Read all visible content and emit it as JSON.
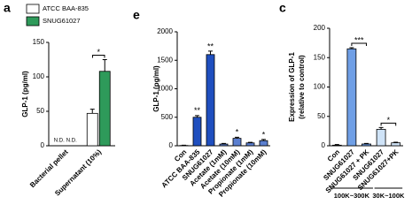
{
  "chart_data": [
    {
      "type": "bar",
      "panel": "a",
      "ylabel": "GLP-1 (pg/ml)",
      "categories": [
        "Bacterial pellet",
        "Supernatant (10%)"
      ],
      "series": [
        {
          "name": "ATCC BAA-835",
          "color": "#ffffff",
          "values": [
            null,
            47
          ],
          "errors": [
            null,
            6
          ],
          "value_labels": [
            "N.D.",
            null
          ]
        },
        {
          "name": "SNUG61027",
          "color": "#2e9a5a",
          "values": [
            null,
            108
          ],
          "errors": [
            null,
            17
          ],
          "value_labels": [
            "N.D.",
            null
          ]
        }
      ],
      "ylim": [
        0,
        150
      ],
      "yticks": [
        0,
        50,
        100,
        150
      ],
      "significance": [
        "*"
      ]
    },
    {
      "type": "bar",
      "panel": "e",
      "ylabel": "GLP-1 (pg/ml)",
      "categories": [
        "Con",
        "ATCC BAA-835",
        "SNUG61027",
        "Acetate (1mM)",
        "Acetate (10mM)",
        "Propionate (1mM)",
        "Propionate (10mM)"
      ],
      "values": [
        5,
        500,
        1600,
        30,
        130,
        50,
        90
      ],
      "errors": [
        5,
        30,
        60,
        10,
        20,
        10,
        20
      ],
      "colors": [
        "#ffffff",
        "#1f4fbf",
        "#1f4fbf",
        "#5b7fd0",
        "#5b7fd0",
        "#5b7fd0",
        "#5b7fd0"
      ],
      "ylim": [
        0,
        2000
      ],
      "yticks": [
        0,
        500,
        1000,
        1500,
        2000
      ],
      "significance": [
        "**",
        "**",
        "*",
        "*"
      ]
    },
    {
      "type": "bar",
      "panel": "c",
      "ylabel": [
        "Expression of GLP-1",
        "(relative to control)"
      ],
      "categories": [
        "Con",
        "SNUG61027",
        "SNUG61027 + PK",
        "SNUG61027",
        "SNUG61027+PK"
      ],
      "values": [
        1,
        165,
        3,
        28,
        5
      ],
      "errors": [
        1,
        2,
        1,
        3,
        1
      ],
      "colors": [
        "#ffffff",
        "#6f9fe6",
        "#6f9fe6",
        "#cfe3f7",
        "#cfe3f7"
      ],
      "ylim": [
        0,
        200
      ],
      "yticks": [
        0,
        50,
        100,
        150,
        200
      ],
      "significance": [
        "***",
        "*"
      ],
      "groups": [
        "100K~300K",
        "30K~100K"
      ]
    }
  ]
}
